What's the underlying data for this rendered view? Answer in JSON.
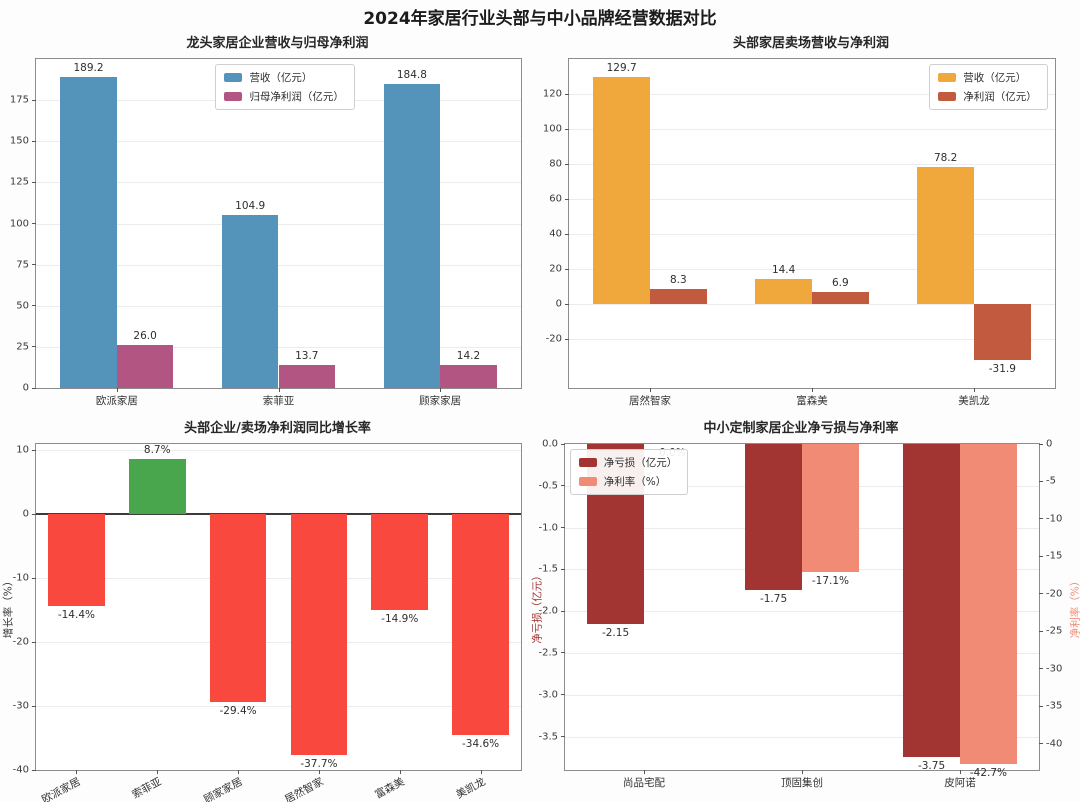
{
  "figure_title": "2024年家居行业头部与中小品牌经营数据对比",
  "chart_data": [
    {
      "type": "bar",
      "title": "龙头家居企业营收与归母净利润",
      "categories": [
        "欧派家居",
        "索菲亚",
        "顾家家居"
      ],
      "series": [
        {
          "name": "营收（亿元）",
          "color": "#5494ba",
          "values": [
            189.2,
            104.9,
            184.8
          ],
          "labels": [
            "189.2",
            "104.9",
            "184.8"
          ]
        },
        {
          "name": "归母净利润（亿元）",
          "color": "#b25583",
          "values": [
            26.0,
            13.7,
            14.2
          ],
          "labels": [
            "26.0",
            "13.7",
            "14.2"
          ]
        }
      ],
      "ylim": [
        0,
        200
      ],
      "yticks": [
        0,
        25,
        50,
        75,
        100,
        125,
        150,
        175
      ],
      "ytick_labels": [
        "0",
        "25",
        "50",
        "75",
        "100",
        "125",
        "150",
        "175"
      ],
      "grid": true,
      "legend_pos": {
        "left": "37%",
        "top": "1.5%"
      },
      "margins": {
        "l": 35,
        "r": 20,
        "t": 30,
        "b": 16
      },
      "bar_frac": 0.35
    },
    {
      "type": "bar",
      "title": "头部家居卖场营收与净利润",
      "categories": [
        "居然智家",
        "富森美",
        "美凯龙"
      ],
      "series": [
        {
          "name": "营收（亿元）",
          "color": "#f0a73b",
          "values": [
            129.7,
            14.4,
            78.2
          ],
          "labels": [
            "129.7",
            "14.4",
            "78.2"
          ]
        },
        {
          "name": "净利润（亿元）",
          "color": "#c25a3f",
          "values": [
            8.3,
            6.9,
            -31.9
          ],
          "labels": [
            "8.3",
            "6.9",
            "-31.9"
          ]
        }
      ],
      "ylim": [
        -48,
        140
      ],
      "yticks": [
        -20,
        0,
        20,
        40,
        60,
        80,
        100,
        120
      ],
      "ytick_labels": [
        "-20",
        "0",
        "20",
        "40",
        "60",
        "80",
        "100",
        "120"
      ],
      "grid": true,
      "legend_pos": {
        "right": "1.5%",
        "top": "1.5%"
      },
      "margins": {
        "l": 28,
        "r": 26,
        "t": 30,
        "b": 16
      },
      "bar_frac": 0.35
    },
    {
      "type": "bar",
      "title": "头部企业/卖场净利润同比增长率",
      "ylabel": "增长率（%）",
      "ylabel_color": "#333333",
      "categories": [
        "欧派家居",
        "索菲亚",
        "顾家家居",
        "居然智家",
        "富森美",
        "美凯龙"
      ],
      "series": [
        {
          "name": "净利润同比增长率（%）",
          "colors": [
            "#f9493f",
            "#4aa64d",
            "#f9493f",
            "#f9493f",
            "#f9493f",
            "#f9493f"
          ],
          "values": [
            -14.4,
            8.7,
            -29.4,
            -37.7,
            -14.9,
            -34.6
          ],
          "labels": [
            "-14.4%",
            "8.7%",
            "-29.4%",
            "-37.7%",
            "-14.9%",
            "-34.6%"
          ]
        }
      ],
      "ylim": [
        -40,
        11
      ],
      "yticks": [
        10,
        0,
        -10,
        -20,
        -30,
        -40
      ],
      "ytick_labels": [
        "10",
        "0",
        "-10",
        "-20",
        "-30",
        "-40"
      ],
      "grid": true,
      "zero_line": true,
      "xtick_rotate": 28,
      "margins": {
        "l": 35,
        "r": 20,
        "t": 40,
        "b": 33
      },
      "bar_frac": 0.7
    },
    {
      "type": "bar",
      "title": "中小定制家居企业净亏损与净利率",
      "ylabel": "净亏损（亿元）",
      "ylabel_color": "#a23431",
      "ylabel_right": "净利率（%）",
      "ylabel_right_color": "#f28b76",
      "categories": [
        "尚品宅配",
        "顶固集创",
        "皮阿诺"
      ],
      "series": [
        {
          "name": "净亏损（亿元）",
          "color": "#a23431",
          "values": [
            -2.15,
            -1.75,
            -3.75
          ],
          "labels": [
            "-2.15",
            "-1.75",
            "-3.75"
          ]
        },
        {
          "name": "净利率（%）",
          "color": "#f28b76",
          "axis": "right",
          "values": [
            0.0,
            -17.1,
            -42.7
          ],
          "labels": [
            "0.0%",
            "-17.1%",
            "-42.7%"
          ]
        }
      ],
      "ylim": [
        -3.9,
        0
      ],
      "yticks": [
        0,
        -0.5,
        -1,
        -1.5,
        -2,
        -2.5,
        -3,
        -3.5
      ],
      "ytick_labels": [
        "0.0",
        "-0.5",
        "-1.0",
        "-1.5",
        "-2.0",
        "-2.5",
        "-3.0",
        "-3.5"
      ],
      "ylim_right": [
        -43.5,
        0
      ],
      "yticks_right": [
        0,
        -5,
        -10,
        -15,
        -20,
        -25,
        -30,
        -35,
        -40
      ],
      "ytick_right_labels": [
        "0",
        "-5",
        "-10",
        "-15",
        "-20",
        "-25",
        "-30",
        "-35",
        "-40"
      ],
      "grid": true,
      "legend_pos": {
        "left": "1%",
        "top": "1.5%"
      },
      "margins": {
        "l": 24,
        "r": 42,
        "t": 40,
        "b": 33
      },
      "bar_frac": 0.36
    }
  ]
}
